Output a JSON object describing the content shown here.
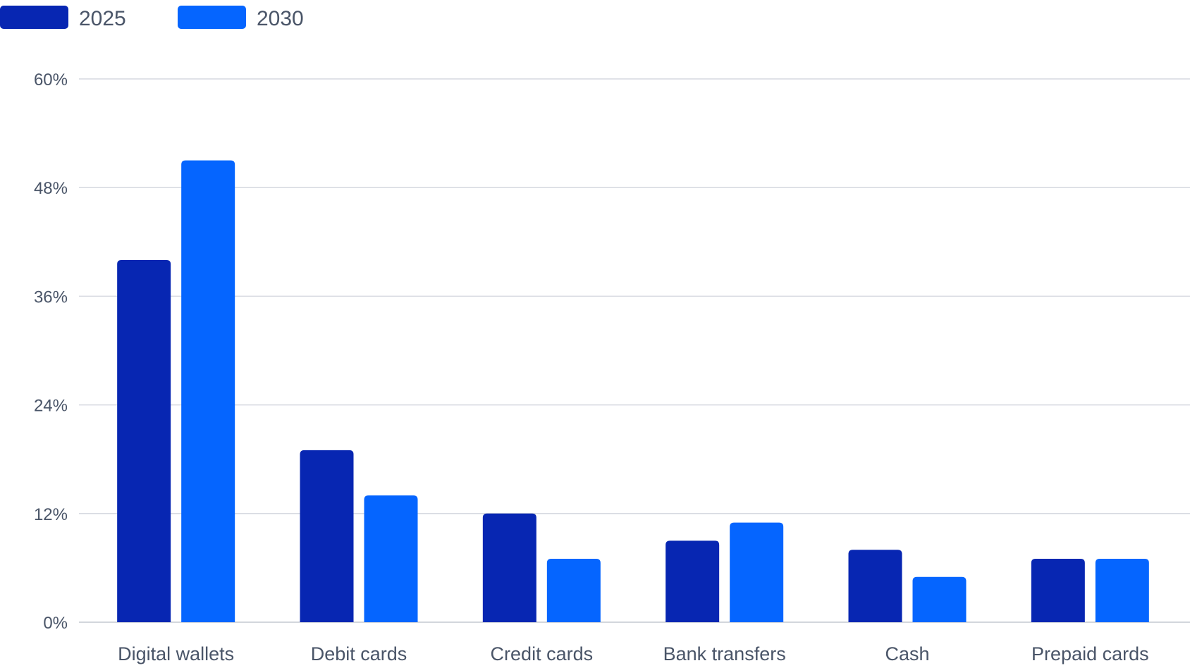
{
  "chart_data": {
    "type": "bar",
    "categories": [
      "Digital wallets",
      "Debit cards",
      "Credit cards",
      "Bank transfers",
      "Cash",
      "Prepaid cards"
    ],
    "series": [
      {
        "name": "2025",
        "values": [
          40,
          19,
          12,
          9,
          8,
          7
        ]
      },
      {
        "name": "2030",
        "values": [
          51,
          14,
          7,
          11,
          5,
          7
        ]
      }
    ],
    "title": "",
    "xlabel": "",
    "ylabel": "",
    "ylim": [
      0,
      60
    ],
    "yticks": [
      0,
      12,
      24,
      36,
      48,
      60
    ],
    "ytick_labels": [
      "0%",
      "12%",
      "24%",
      "36%",
      "48%",
      "60%"
    ],
    "grid": true,
    "legend_position": "top-left"
  },
  "colors": {
    "series_2025": "#0726b2",
    "series_2030": "#0565ff"
  }
}
